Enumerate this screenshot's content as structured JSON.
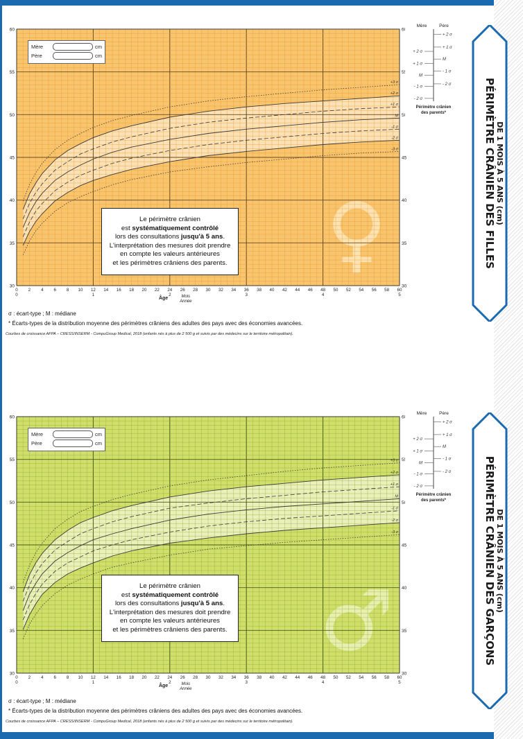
{
  "panels": [
    {
      "id": "filles",
      "title_line1": "PÉRIMÈTRE CRÂNIEN DES FILLES",
      "title_line2": "DE 1 MOIS À 5 ANS (cm)",
      "colors": {
        "bg": "#f9c46e",
        "band": "#fbe6c2",
        "grid_minor": "#e59a2a",
        "grid_major": "#6a4a1c",
        "title_fill": "#1b6ab0",
        "symbol": "#fde2b2"
      },
      "symbol": "♀",
      "parents": {
        "mere_label": "Mère",
        "pere_label": "Père",
        "unit": "cm"
      },
      "infobox": {
        "l1": "Le périmètre crânien",
        "l2a": "est ",
        "l2b": "systématiquement contrôlé",
        "l3a": "lors des consultations ",
        "l3b": "jusqu'à 5 ans",
        "l3c": ".",
        "l4": "L'interprétation des mesures doit prendre",
        "l5": "en compte les valeurs antérieures",
        "l6": "et les périmètres crâniens des parents."
      },
      "sigma_note": "σ : écart-type ; M : médiane",
      "footnote": "* Écarts-types de la distribution moyenne des périmètres crâniens des adultes des pays avec des économies avancées.",
      "source": "Courbes de croissance AFPA – CRESS/INSERM - CompuGroup Medical, 2018 (enfants nés à plus de 2 500 g et suivis par des médecins sur le territoire métropolitain).",
      "scale": {
        "mere_header": "Mère",
        "pere_header": "Père",
        "footer1": "Périmètre crânien",
        "footer2": "des parents*",
        "mere_labels": [
          "+ 2 σ",
          "+ 1 σ",
          "M",
          "- 1 σ",
          "- 2 σ"
        ],
        "pere_labels": [
          "+ 2 σ",
          "+ 1 σ",
          "M",
          "- 1 σ",
          "- 2 σ"
        ]
      },
      "chart_data": {
        "type": "line",
        "xlabel": "Âge",
        "xlabel_units_1": "Mois",
        "xlabel_units_2": "Année",
        "xlim": [
          0,
          60
        ],
        "ylim": [
          30,
          60
        ],
        "x_ticks_months": [
          0,
          2,
          4,
          6,
          8,
          10,
          12,
          14,
          16,
          18,
          20,
          22,
          24,
          26,
          28,
          30,
          32,
          34,
          36,
          38,
          40,
          42,
          44,
          46,
          48,
          50,
          52,
          54,
          56,
          58,
          60
        ],
        "x_ticks_years": [
          {
            "m": 0,
            "label": "0"
          },
          {
            "m": 12,
            "label": "1"
          },
          {
            "m": 24,
            "label": "2"
          },
          {
            "m": 36,
            "label": "3"
          },
          {
            "m": 48,
            "label": "4"
          },
          {
            "m": 60,
            "label": "5"
          }
        ],
        "y_ticks": [
          30,
          35,
          40,
          45,
          50,
          55,
          60
        ],
        "x": [
          1,
          2,
          3,
          4,
          6,
          8,
          10,
          12,
          15,
          18,
          24,
          30,
          36,
          42,
          48,
          54,
          60
        ],
        "series": [
          {
            "name": "+3 σ",
            "style": "dotted",
            "values": [
              39.9,
              41.8,
              43.2,
              44.3,
              45.9,
              47.0,
              47.8,
              48.5,
              49.3,
              49.9,
              50.9,
              51.6,
              52.1,
              52.5,
              52.9,
              53.2,
              53.5
            ]
          },
          {
            "name": "+2 σ",
            "style": "solid",
            "values": [
              38.9,
              40.7,
              42.0,
              43.1,
              44.7,
              45.8,
              46.6,
              47.3,
              48.1,
              48.7,
              49.7,
              50.4,
              50.9,
              51.3,
              51.6,
              51.9,
              52.2
            ]
          },
          {
            "name": "+1 σ",
            "style": "dashed",
            "values": [
              37.8,
              39.6,
              40.9,
              41.9,
              43.5,
              44.5,
              45.4,
              46.0,
              46.8,
              47.4,
              48.4,
              49.1,
              49.6,
              50.0,
              50.4,
              50.7,
              50.9
            ]
          },
          {
            "name": "M",
            "style": "solid",
            "values": [
              36.8,
              38.5,
              39.8,
              40.8,
              42.3,
              43.3,
              44.1,
              44.8,
              45.6,
              46.2,
              47.1,
              47.8,
              48.3,
              48.7,
              49.1,
              49.4,
              49.6
            ]
          },
          {
            "name": "-1 σ",
            "style": "dashed",
            "values": [
              35.7,
              37.4,
              38.7,
              39.6,
              41.1,
              42.1,
              42.9,
              43.5,
              44.3,
              44.9,
              45.8,
              46.5,
              47.0,
              47.4,
              47.8,
              48.1,
              48.3
            ]
          },
          {
            "name": "-2 σ",
            "style": "solid",
            "values": [
              34.7,
              36.3,
              37.5,
              38.4,
              39.9,
              40.9,
              41.7,
              42.3,
              43.0,
              43.6,
              44.5,
              45.2,
              45.7,
              46.1,
              46.5,
              46.8,
              47.0
            ]
          },
          {
            "name": "-3 σ",
            "style": "dotted",
            "values": [
              33.6,
              35.2,
              36.4,
              37.3,
              38.7,
              39.7,
              40.4,
              41.0,
              41.8,
              42.4,
              43.3,
              43.9,
              44.4,
              44.8,
              45.2,
              45.5,
              45.7
            ]
          }
        ],
        "curve_labels": [
          "+3 σ",
          "+2 σ",
          "+1 σ",
          "M",
          "-1 σ",
          "-2 σ",
          "-3 σ"
        ]
      }
    },
    {
      "id": "garcons",
      "title_line1": "PÉRIMÈTRE CRÂNIEN DES GARÇONS",
      "title_line2": "DE 1 MOIS À 5 ANS (cm)",
      "colors": {
        "bg": "#cfdf6a",
        "band": "#eef3c8",
        "grid_minor": "#8fa635",
        "grid_major": "#4a5a18",
        "title_fill": "#1b6ab0",
        "symbol": "#e8f0b0"
      },
      "symbol": "♂",
      "parents": {
        "mere_label": "Mère",
        "pere_label": "Père",
        "unit": "cm"
      },
      "infobox": {
        "l1": "Le périmètre crânien",
        "l2a": "est ",
        "l2b": "systématiquement contrôlé",
        "l3a": "lors des consultations ",
        "l3b": "jusqu'à 5 ans",
        "l3c": ".",
        "l4": "L'interprétation des mesures doit prendre",
        "l5": "en compte les valeurs antérieures",
        "l6": "et les périmètres crâniens des parents."
      },
      "sigma_note": "σ : écart-type ; M : médiane",
      "footnote": "* Écarts-types de la distribution moyenne des périmètres crâniens des adultes des pays avec des économies avancées.",
      "source": "Courbes de croissance AFPA – CRESS/INSERM - CompuGroup Medical, 2018 (enfants nés à plus de 2 500 g et suivis par des médecins sur le territoire métropolitain).",
      "scale": {
        "mere_header": "Mère",
        "pere_header": "Père",
        "footer1": "Périmètre crânien",
        "footer2": "des parents*",
        "mere_labels": [
          "+ 2 σ",
          "+ 1 σ",
          "M",
          "- 1 σ",
          "- 2 σ"
        ],
        "pere_labels": [
          "+ 2 σ",
          "+ 1 σ",
          "M",
          "- 1 σ",
          "- 2 σ"
        ]
      },
      "chart_data": {
        "type": "line",
        "xlabel": "Âge",
        "xlabel_units_1": "Mois",
        "xlabel_units_2": "Année",
        "xlim": [
          0,
          60
        ],
        "ylim": [
          30,
          60
        ],
        "x_ticks_months": [
          0,
          2,
          4,
          6,
          8,
          10,
          12,
          14,
          16,
          18,
          20,
          22,
          24,
          26,
          28,
          30,
          32,
          34,
          36,
          38,
          40,
          42,
          44,
          46,
          48,
          50,
          52,
          54,
          56,
          58,
          60
        ],
        "x_ticks_years": [
          {
            "m": 0,
            "label": "0"
          },
          {
            "m": 12,
            "label": "1"
          },
          {
            "m": 24,
            "label": "2"
          },
          {
            "m": 36,
            "label": "3"
          },
          {
            "m": 48,
            "label": "4"
          },
          {
            "m": 60,
            "label": "5"
          }
        ],
        "y_ticks": [
          30,
          35,
          40,
          45,
          50,
          55,
          60
        ],
        "x": [
          1,
          2,
          3,
          4,
          6,
          8,
          10,
          12,
          15,
          18,
          24,
          30,
          36,
          42,
          48,
          54,
          60
        ],
        "series": [
          {
            "name": "+3 σ",
            "style": "dotted",
            "values": [
              40.6,
              42.6,
              44.1,
              45.2,
              46.9,
              48.0,
              48.9,
              49.5,
              50.3,
              50.9,
              51.9,
              52.6,
              53.1,
              53.6,
              54.0,
              54.3,
              54.6
            ]
          },
          {
            "name": "+2 σ",
            "style": "solid",
            "values": [
              39.5,
              41.5,
              42.9,
              44.0,
              45.6,
              46.7,
              47.6,
              48.2,
              49.0,
              49.6,
              50.6,
              51.3,
              51.8,
              52.2,
              52.6,
              52.9,
              53.2
            ]
          },
          {
            "name": "+1 σ",
            "style": "dashed",
            "values": [
              38.4,
              40.3,
              41.7,
              42.8,
              44.4,
              45.4,
              46.3,
              46.9,
              47.7,
              48.3,
              49.3,
              49.9,
              50.4,
              50.8,
              51.2,
              51.5,
              51.8
            ]
          },
          {
            "name": "M",
            "style": "solid",
            "values": [
              37.3,
              39.2,
              40.5,
              41.6,
              43.1,
              44.1,
              44.9,
              45.6,
              46.3,
              46.9,
              47.9,
              48.6,
              49.1,
              49.5,
              49.8,
              50.1,
              50.4
            ]
          },
          {
            "name": "-1 σ",
            "style": "dashed",
            "values": [
              36.2,
              38.0,
              39.3,
              40.4,
              41.9,
              42.9,
              43.6,
              44.3,
              45.0,
              45.6,
              46.5,
              47.2,
              47.7,
              48.1,
              48.4,
              48.7,
              49.0
            ]
          },
          {
            "name": "-2 σ",
            "style": "solid",
            "values": [
              35.1,
              36.8,
              38.1,
              39.2,
              40.6,
              41.6,
              42.3,
              42.9,
              43.7,
              44.3,
              45.2,
              45.8,
              46.3,
              46.7,
              47.0,
              47.3,
              47.6
            ]
          },
          {
            "name": "-3 σ",
            "style": "dotted",
            "values": [
              34.0,
              35.7,
              36.9,
              37.9,
              39.3,
              40.3,
              41.0,
              41.6,
              42.4,
              42.9,
              43.8,
              44.5,
              44.9,
              45.3,
              45.6,
              45.9,
              46.2
            ]
          }
        ],
        "curve_labels": [
          "+3 σ",
          "+2 σ",
          "+1 σ",
          "M",
          "-1 σ",
          "-2 σ",
          "-3 σ"
        ]
      }
    }
  ]
}
